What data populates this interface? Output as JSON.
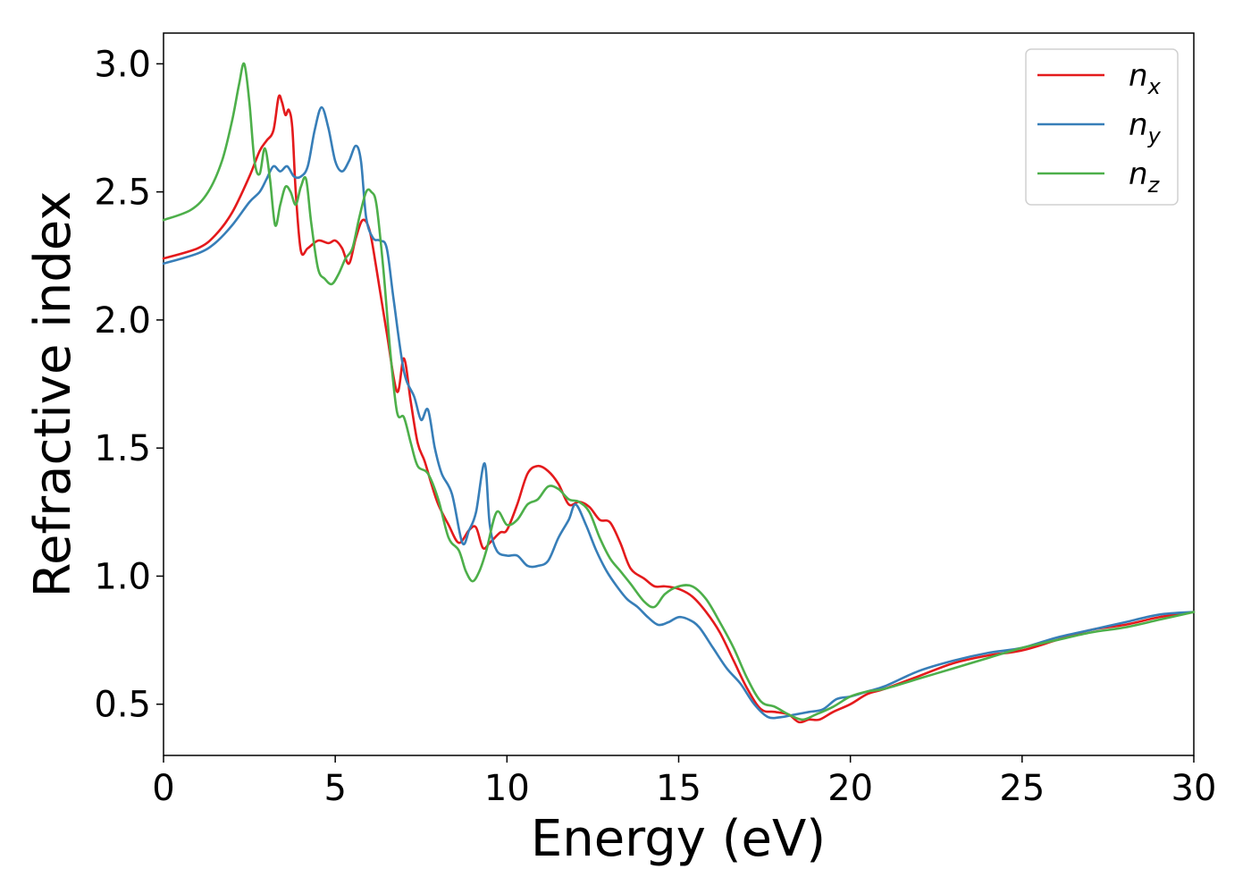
{
  "chart_data": {
    "type": "line",
    "title": "",
    "xlabel": "Energy (eV)",
    "ylabel": "Refractive index",
    "xlim": [
      0,
      30
    ],
    "ylim": [
      0.3,
      3.12
    ],
    "xticks": [
      0,
      5,
      10,
      15,
      20,
      25,
      30
    ],
    "yticks": [
      0.5,
      1.0,
      1.5,
      2.0,
      2.5,
      3.0
    ],
    "xtick_labels": [
      "0",
      "5",
      "10",
      "15",
      "20",
      "25",
      "30"
    ],
    "ytick_labels": [
      "0.5",
      "1.0",
      "1.5",
      "2.0",
      "2.5",
      "3.0"
    ],
    "grid": false,
    "legend_position": "top-right",
    "series": [
      {
        "name": "n_x",
        "legend_base": "n",
        "legend_sub": "x",
        "color": "#e41a1c",
        "x": [
          0,
          1,
          1.5,
          2,
          2.5,
          2.8,
          3.0,
          3.2,
          3.35,
          3.45,
          3.55,
          3.65,
          3.75,
          3.85,
          4.0,
          4.2,
          4.5,
          4.8,
          5.0,
          5.2,
          5.4,
          5.6,
          5.8,
          6.0,
          6.2,
          6.5,
          6.8,
          7.0,
          7.2,
          7.4,
          7.6,
          7.8,
          8.0,
          8.3,
          8.6,
          8.9,
          9.1,
          9.3,
          9.5,
          9.8,
          10.0,
          10.3,
          10.6,
          10.9,
          11.2,
          11.5,
          11.8,
          12.1,
          12.4,
          12.7,
          13.0,
          13.3,
          13.6,
          14.0,
          14.3,
          14.6,
          15.0,
          15.4,
          15.8,
          16.2,
          16.6,
          17.0,
          17.4,
          17.8,
          18.2,
          18.5,
          18.8,
          19.1,
          19.5,
          20.0,
          20.5,
          21.0,
          22.0,
          23.0,
          24.0,
          25.0,
          26.0,
          27.0,
          28.0,
          29.0,
          30.0
        ],
        "y": [
          2.24,
          2.28,
          2.33,
          2.42,
          2.56,
          2.66,
          2.7,
          2.74,
          2.87,
          2.85,
          2.8,
          2.82,
          2.75,
          2.5,
          2.27,
          2.28,
          2.31,
          2.3,
          2.31,
          2.28,
          2.22,
          2.32,
          2.39,
          2.35,
          2.2,
          1.95,
          1.72,
          1.85,
          1.68,
          1.52,
          1.45,
          1.36,
          1.28,
          1.2,
          1.13,
          1.18,
          1.19,
          1.11,
          1.13,
          1.17,
          1.18,
          1.28,
          1.4,
          1.43,
          1.41,
          1.36,
          1.28,
          1.29,
          1.27,
          1.22,
          1.21,
          1.13,
          1.03,
          0.99,
          0.96,
          0.96,
          0.95,
          0.92,
          0.86,
          0.78,
          0.67,
          0.56,
          0.48,
          0.47,
          0.46,
          0.43,
          0.44,
          0.44,
          0.47,
          0.5,
          0.54,
          0.56,
          0.61,
          0.66,
          0.69,
          0.71,
          0.75,
          0.79,
          0.81,
          0.84,
          0.86
        ]
      },
      {
        "name": "n_y",
        "legend_base": "n",
        "legend_sub": "y",
        "color": "#377eb8",
        "x": [
          0,
          1,
          1.5,
          2,
          2.5,
          2.8,
          3.0,
          3.2,
          3.4,
          3.6,
          3.8,
          4.0,
          4.2,
          4.4,
          4.6,
          4.8,
          5.0,
          5.2,
          5.4,
          5.6,
          5.75,
          5.9,
          6.1,
          6.3,
          6.5,
          6.7,
          7.0,
          7.3,
          7.5,
          7.7,
          7.9,
          8.1,
          8.4,
          8.7,
          8.9,
          9.1,
          9.35,
          9.5,
          9.7,
          10.0,
          10.3,
          10.6,
          10.9,
          11.2,
          11.5,
          11.8,
          12.0,
          12.3,
          12.6,
          12.9,
          13.2,
          13.5,
          13.8,
          14.1,
          14.4,
          14.7,
          15.0,
          15.3,
          15.6,
          16.0,
          16.4,
          16.8,
          17.2,
          17.6,
          18.0,
          18.4,
          18.8,
          19.2,
          19.6,
          20.0,
          20.5,
          21.0,
          22.0,
          23.0,
          24.0,
          25.0,
          26.0,
          27.0,
          28.0,
          29.0,
          30.0
        ],
        "y": [
          2.22,
          2.26,
          2.3,
          2.37,
          2.46,
          2.5,
          2.55,
          2.6,
          2.58,
          2.6,
          2.56,
          2.56,
          2.6,
          2.74,
          2.83,
          2.75,
          2.62,
          2.58,
          2.62,
          2.68,
          2.62,
          2.4,
          2.32,
          2.31,
          2.28,
          2.08,
          1.8,
          1.7,
          1.61,
          1.65,
          1.5,
          1.4,
          1.32,
          1.13,
          1.18,
          1.25,
          1.44,
          1.2,
          1.1,
          1.08,
          1.08,
          1.04,
          1.04,
          1.06,
          1.15,
          1.22,
          1.28,
          1.2,
          1.1,
          1.02,
          0.96,
          0.91,
          0.88,
          0.84,
          0.81,
          0.82,
          0.84,
          0.83,
          0.8,
          0.72,
          0.64,
          0.58,
          0.5,
          0.45,
          0.45,
          0.46,
          0.47,
          0.48,
          0.52,
          0.53,
          0.55,
          0.57,
          0.63,
          0.67,
          0.7,
          0.72,
          0.76,
          0.79,
          0.82,
          0.85,
          0.86
        ]
      },
      {
        "name": "n_z",
        "legend_base": "n",
        "legend_sub": "z",
        "color": "#4daf4a",
        "x": [
          0,
          0.8,
          1.3,
          1.7,
          2.0,
          2.2,
          2.35,
          2.5,
          2.65,
          2.8,
          2.95,
          3.1,
          3.25,
          3.4,
          3.55,
          3.7,
          3.85,
          4.0,
          4.15,
          4.3,
          4.5,
          4.7,
          4.9,
          5.1,
          5.3,
          5.5,
          5.7,
          5.9,
          6.05,
          6.2,
          6.4,
          6.6,
          6.8,
          7.0,
          7.2,
          7.4,
          7.7,
          8.0,
          8.3,
          8.6,
          8.8,
          9.0,
          9.2,
          9.4,
          9.7,
          10.0,
          10.3,
          10.6,
          10.9,
          11.2,
          11.5,
          11.8,
          12.1,
          12.4,
          12.7,
          13.0,
          13.3,
          13.6,
          14.0,
          14.3,
          14.6,
          15.0,
          15.4,
          15.8,
          16.2,
          16.6,
          17.0,
          17.4,
          17.8,
          18.2,
          18.6,
          19.0,
          19.5,
          20.0,
          20.5,
          21.0,
          22.0,
          23.0,
          24.0,
          25.0,
          26.0,
          27.0,
          28.0,
          29.0,
          30.0
        ],
        "y": [
          2.39,
          2.43,
          2.5,
          2.62,
          2.78,
          2.92,
          3.0,
          2.85,
          2.62,
          2.57,
          2.67,
          2.55,
          2.37,
          2.45,
          2.52,
          2.5,
          2.45,
          2.52,
          2.55,
          2.38,
          2.2,
          2.16,
          2.14,
          2.18,
          2.24,
          2.28,
          2.4,
          2.5,
          2.5,
          2.45,
          2.2,
          1.88,
          1.64,
          1.62,
          1.52,
          1.43,
          1.4,
          1.3,
          1.15,
          1.1,
          1.02,
          0.98,
          1.02,
          1.1,
          1.25,
          1.2,
          1.22,
          1.28,
          1.3,
          1.35,
          1.34,
          1.3,
          1.29,
          1.25,
          1.15,
          1.07,
          1.02,
          0.97,
          0.9,
          0.88,
          0.93,
          0.96,
          0.96,
          0.91,
          0.82,
          0.72,
          0.6,
          0.51,
          0.49,
          0.46,
          0.44,
          0.46,
          0.49,
          0.53,
          0.55,
          0.56,
          0.6,
          0.64,
          0.68,
          0.72,
          0.75,
          0.78,
          0.8,
          0.83,
          0.86
        ]
      }
    ]
  }
}
